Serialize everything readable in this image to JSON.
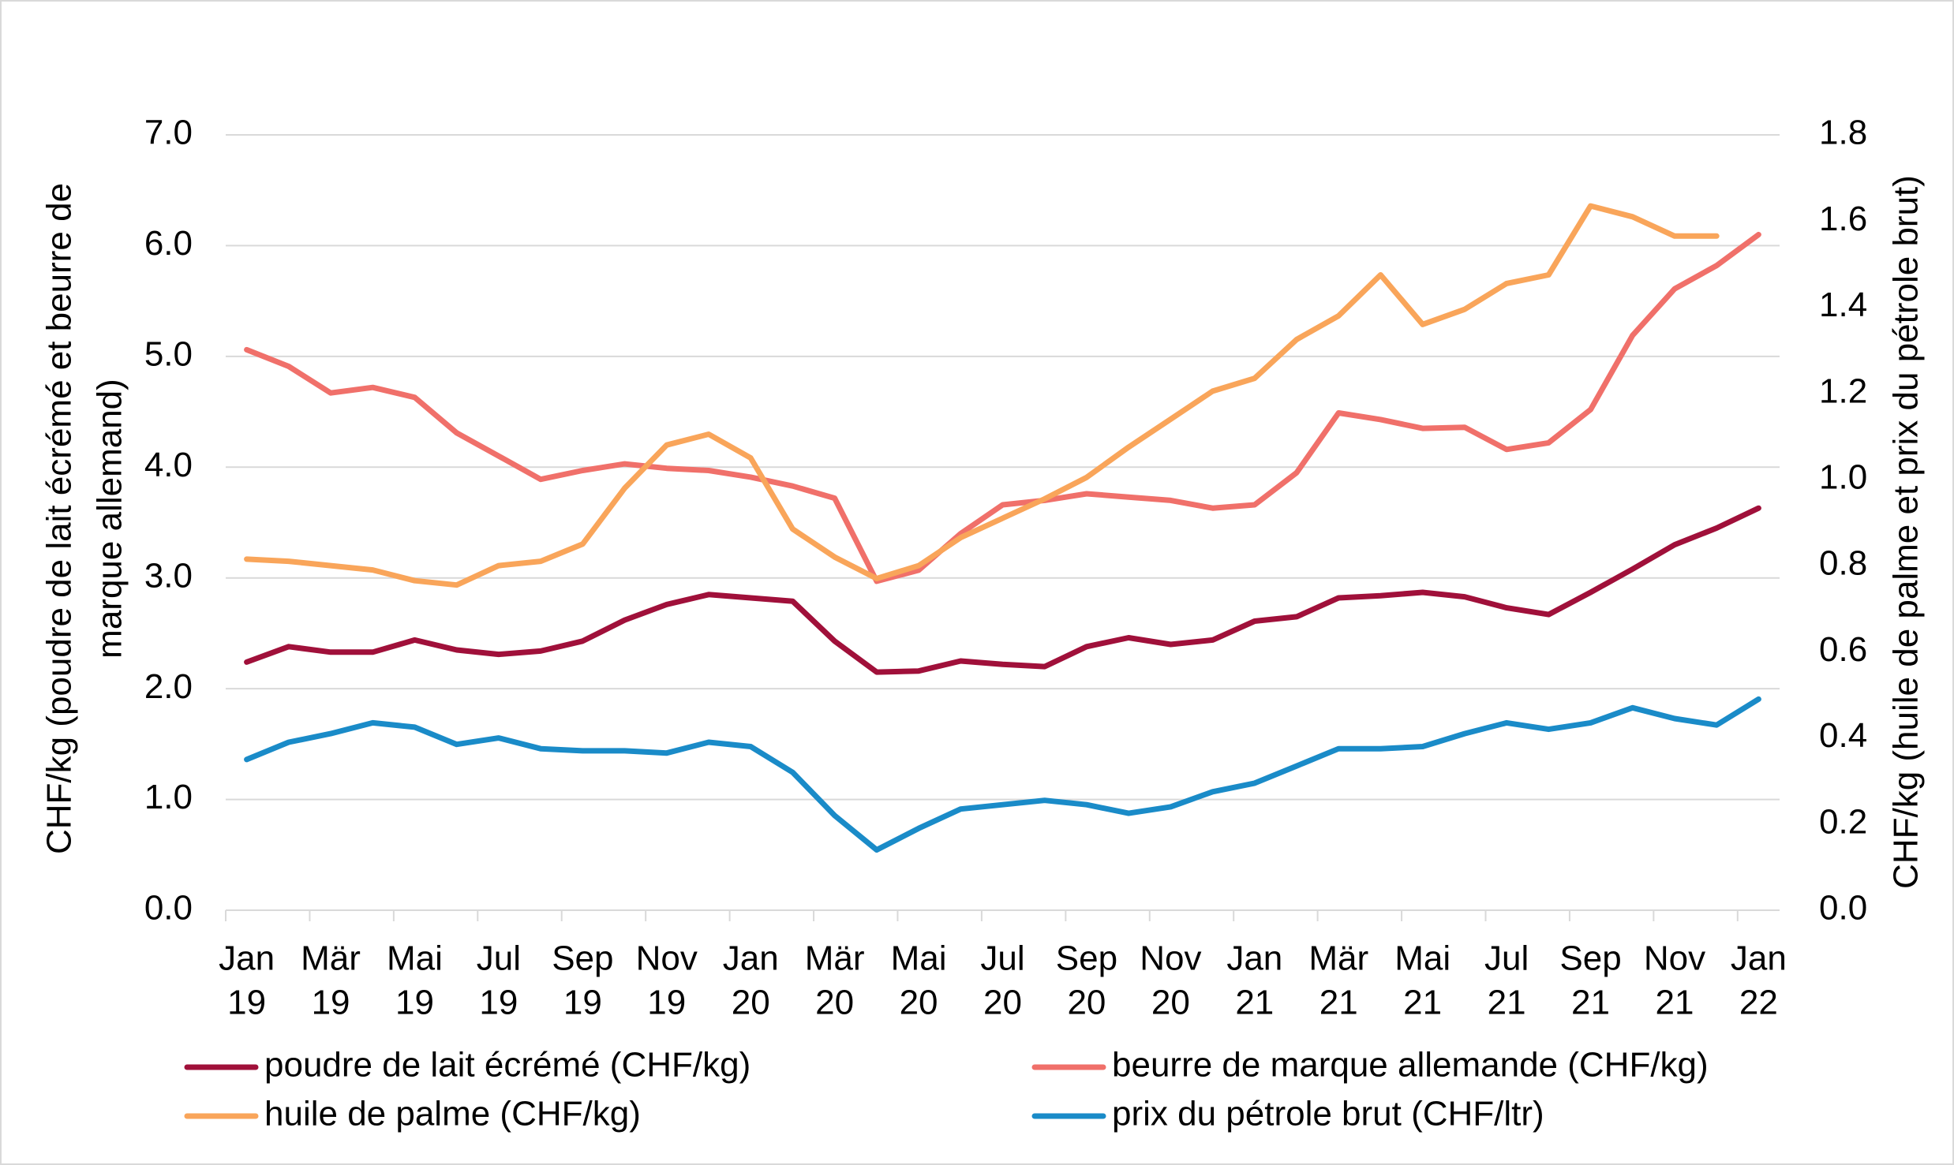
{
  "chart_data": {
    "type": "line",
    "categories": [
      [
        "Jan",
        "19"
      ],
      null,
      [
        "Mär",
        "19"
      ],
      null,
      [
        "Mai",
        "19"
      ],
      null,
      [
        "Jul",
        "19"
      ],
      null,
      [
        "Sep",
        "19"
      ],
      null,
      [
        "Nov",
        "19"
      ],
      null,
      [
        "Jan",
        "20"
      ],
      null,
      [
        "Mär",
        "20"
      ],
      null,
      [
        "Mai",
        "20"
      ],
      null,
      [
        "Jul",
        "20"
      ],
      null,
      [
        "Sep",
        "20"
      ],
      null,
      [
        "Nov",
        "20"
      ],
      null,
      [
        "Jan",
        "21"
      ],
      null,
      [
        "Mär",
        "21"
      ],
      null,
      [
        "Mai",
        "21"
      ],
      null,
      [
        "Jul",
        "21"
      ],
      null,
      [
        "Sep",
        "21"
      ],
      null,
      [
        "Nov",
        "21"
      ],
      null,
      [
        "Jan",
        "22"
      ]
    ],
    "ylabel": [
      "CHF/kg (poudre de lait écrémé et beurre de",
      "marque allemand)"
    ],
    "y2label": "CHF/kg (huile de palme et prix du pétrole brut)",
    "ylim": [
      0,
      7
    ],
    "yticks": [
      {
        "value": 0,
        "label": "0.0"
      },
      {
        "value": 1,
        "label": "1.0"
      },
      {
        "value": 2,
        "label": "2.0"
      },
      {
        "value": 3,
        "label": "3.0"
      },
      {
        "value": 4,
        "label": "4.0"
      },
      {
        "value": 5,
        "label": "5.0"
      },
      {
        "value": 6,
        "label": "6.0"
      },
      {
        "value": 7,
        "label": "7.0"
      }
    ],
    "y2lim": [
      0,
      1.8
    ],
    "y2ticks": [
      {
        "value": 0,
        "label": "0.0"
      },
      0.2,
      0.4,
      0.6,
      0.8,
      {
        "value": 1,
        "label": "1.0"
      },
      1.2,
      1.4,
      1.6,
      1.8
    ],
    "grid": true,
    "legend": "bottom",
    "series": [
      {
        "name": "poudre de lait écrémé (CHF/kg)",
        "color": "#a0103a",
        "values": [
          2.24,
          2.38,
          2.33,
          2.33,
          2.44,
          2.35,
          2.31,
          2.34,
          2.43,
          2.62,
          2.76,
          2.85,
          2.82,
          2.79,
          2.43,
          2.15,
          2.16,
          2.25,
          2.22,
          2.2,
          2.38,
          2.46,
          2.4,
          2.44,
          2.61,
          2.65,
          2.82,
          2.84,
          2.87,
          2.83,
          2.73,
          2.67,
          2.87,
          3.08,
          3.3,
          3.45,
          3.63
        ]
      },
      {
        "name": "beurre de marque allemande (CHF/kg)",
        "color": "#f0706a",
        "values": [
          5.06,
          4.91,
          4.67,
          4.72,
          4.63,
          4.31,
          4.1,
          3.89,
          3.97,
          4.03,
          3.99,
          3.97,
          3.91,
          3.83,
          3.72,
          2.97,
          3.07,
          3.4,
          3.66,
          3.7,
          3.76,
          3.73,
          3.7,
          3.63,
          3.66,
          3.95,
          4.49,
          4.43,
          4.35,
          4.36,
          4.16,
          4.22,
          4.52,
          5.19,
          5.61,
          5.82,
          6.1
        ]
      },
      {
        "name": "huile de palme (CHF/kg)",
        "color": "#f9a55a",
        "axis": "y2",
        "values": [
          0.815,
          0.81,
          0.8,
          0.79,
          0.765,
          0.755,
          0.8,
          0.81,
          0.85,
          0.98,
          1.08,
          1.105,
          1.05,
          0.885,
          0.82,
          0.77,
          0.8,
          0.865,
          0.91,
          0.955,
          1.005,
          1.075,
          1.14,
          1.205,
          1.235,
          1.325,
          1.38,
          1.475,
          1.36,
          1.395,
          1.455,
          1.475,
          1.635,
          1.61,
          1.565,
          1.565,
          null
        ]
      },
      {
        "name": "prix du pétrole brut (CHF/ltr)",
        "color": "#1a8bc8",
        "axis": "y2",
        "values": [
          0.35,
          0.39,
          0.41,
          0.435,
          0.425,
          0.385,
          0.4,
          0.375,
          0.37,
          0.37,
          0.365,
          0.39,
          0.38,
          0.32,
          0.22,
          0.14,
          0.19,
          0.235,
          0.245,
          0.255,
          0.245,
          0.225,
          0.24,
          0.275,
          0.295,
          0.335,
          0.375,
          0.375,
          0.38,
          0.41,
          0.435,
          0.42,
          0.435,
          0.47,
          0.445,
          0.43,
          0.49
        ]
      }
    ]
  }
}
